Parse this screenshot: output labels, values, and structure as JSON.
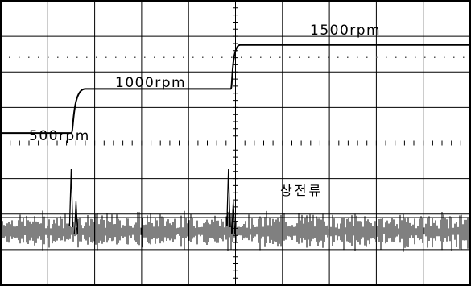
{
  "chart_data": {
    "type": "line",
    "title": "",
    "xlabel": "",
    "ylabel": "",
    "grid": true,
    "grid_divisions": {
      "x": 10,
      "y": 8
    },
    "series": [
      {
        "name": "speed",
        "unit": "rpm",
        "points": [
          {
            "t": 0.0,
            "rpm": 500
          },
          {
            "t": 1.5,
            "rpm": 500
          },
          {
            "t": 1.8,
            "rpm": 1000
          },
          {
            "t": 4.9,
            "rpm": 1000
          },
          {
            "t": 5.1,
            "rpm": 1500
          },
          {
            "t": 10.0,
            "rpm": 1500
          }
        ]
      },
      {
        "name": "current",
        "spikes_at_t": [
          1.5,
          4.85
        ]
      }
    ],
    "annotations": [
      {
        "id": "rpm500",
        "text": "500rpm"
      },
      {
        "id": "rpm1000",
        "text": "1000rpm"
      },
      {
        "id": "rpm1500",
        "text": "1500rpm"
      },
      {
        "id": "current",
        "text": "상전류"
      }
    ]
  }
}
